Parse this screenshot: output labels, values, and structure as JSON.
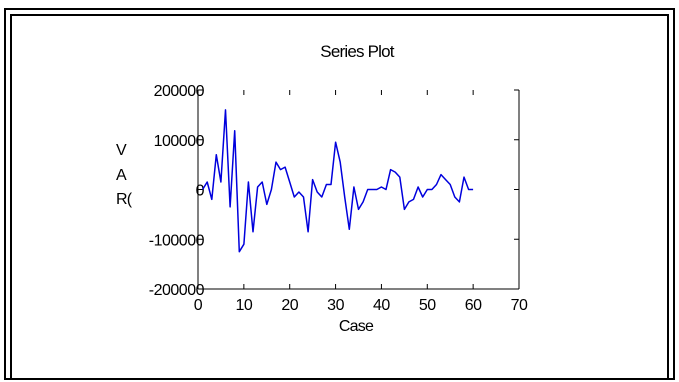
{
  "chart_data": {
    "type": "line",
    "title": "Series Plot",
    "xlabel": "Case",
    "ylabel_chars": [
      "V",
      "A",
      "R("
    ],
    "xlim": [
      0,
      70
    ],
    "ylim": [
      -200000,
      200000
    ],
    "x_ticks": [
      0,
      10,
      20,
      30,
      40,
      50,
      60,
      70
    ],
    "y_ticks": [
      200000,
      100000,
      0,
      -100000,
      -200000
    ],
    "x_tick_labels": [
      "0",
      "10",
      "20",
      "30",
      "40",
      "50",
      "60",
      "70"
    ],
    "y_tick_labels": [
      "200000",
      "100000",
      "0",
      "-100000",
      "-200000"
    ],
    "grid": false,
    "series": [
      {
        "color": "#0000dd",
        "x": [
          1,
          2,
          3,
          4,
          5,
          6,
          7,
          8,
          9,
          10,
          11,
          12,
          13,
          14,
          15,
          16,
          17,
          18,
          19,
          20,
          21,
          22,
          23,
          24,
          25,
          26,
          27,
          28,
          29,
          30,
          31,
          32,
          33,
          34,
          35,
          36,
          37,
          38,
          39,
          40,
          41,
          42,
          43,
          44,
          45,
          46,
          47,
          48,
          49,
          50,
          51,
          52,
          53,
          54,
          55,
          56,
          57,
          58,
          59,
          60
        ],
        "values": [
          0,
          15000,
          -20000,
          70000,
          15000,
          160000,
          -35000,
          118000,
          -125000,
          -110000,
          15000,
          -85000,
          5000,
          15000,
          -30000,
          0,
          55000,
          40000,
          45000,
          15000,
          -15000,
          -5000,
          -15000,
          -85000,
          20000,
          -5000,
          -15000,
          10000,
          10000,
          95000,
          55000,
          -15000,
          -80000,
          5000,
          -40000,
          -25000,
          0,
          0,
          0,
          5000,
          0,
          40000,
          35000,
          25000,
          -40000,
          -25000,
          -20000,
          5000,
          -15000,
          0,
          0,
          10000,
          30000,
          20000,
          10000,
          -15000,
          -25000,
          25000,
          0,
          0
        ]
      }
    ]
  }
}
